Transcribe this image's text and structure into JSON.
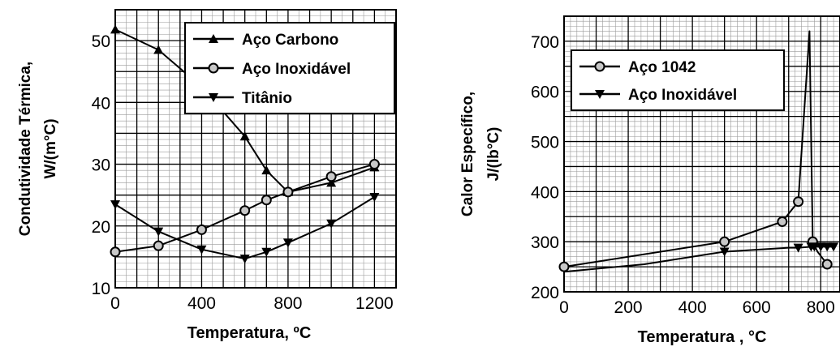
{
  "chart_data": [
    {
      "type": "line",
      "ylabel_line1": "Condutividade Térmica,",
      "ylabel_line2": "W/(m°C)",
      "xlabel": "Temperatura, ºC",
      "xlim": [
        0,
        1300
      ],
      "ylim": [
        10,
        55
      ],
      "xticks": [
        0,
        400,
        800,
        1200
      ],
      "yticks": [
        10,
        20,
        30,
        40,
        50
      ],
      "grid": true,
      "legend": "top-right",
      "series": [
        {
          "name": "Aço Carbono",
          "marker": "triangle-up",
          "x": [
            0,
            200,
            400,
            600,
            700,
            800,
            1000,
            1200
          ],
          "y": [
            51.8,
            48.5,
            42.5,
            34.5,
            29.0,
            25.5,
            27.0,
            29.5
          ]
        },
        {
          "name": "Aço Inoxidável",
          "marker": "circle",
          "x": [
            0,
            200,
            400,
            600,
            700,
            800,
            1000,
            1200
          ],
          "y": [
            15.8,
            16.8,
            19.4,
            22.5,
            24.2,
            25.5,
            28.0,
            30.0
          ]
        },
        {
          "name": "Titânio",
          "marker": "triangle-down",
          "x": [
            0,
            200,
            400,
            600,
            700,
            800,
            1000,
            1200
          ],
          "y": [
            23.5,
            19.1,
            16.2,
            14.7,
            15.8,
            17.3,
            20.4,
            24.7
          ]
        }
      ]
    },
    {
      "type": "line",
      "ylabel_line1": "Calor Específico,",
      "ylabel_line2": "J/(lb°C)",
      "xlabel": "Temperatura , °C",
      "xlim": [
        0,
        860
      ],
      "ylim": [
        200,
        750
      ],
      "xticks": [
        0,
        200,
        400,
        600,
        800
      ],
      "yticks": [
        200,
        300,
        400,
        500,
        600,
        700
      ],
      "grid": true,
      "legend": "top-left",
      "series": [
        {
          "name": "Aço  1042",
          "marker": "circle",
          "x": [
            0,
            500,
            680,
            730,
            765,
            775,
            790,
            820
          ],
          "y": [
            250,
            300,
            340,
            380,
            720,
            300,
            280,
            255
          ]
        },
        {
          "name": "Aço Inoxidável",
          "marker": "triangle-down",
          "x": [
            0,
            250,
            500,
            700,
            730,
            770,
            780,
            800,
            820,
            840
          ],
          "y": [
            240,
            255,
            280,
            288,
            288,
            290,
            290,
            290,
            290,
            290
          ]
        }
      ]
    }
  ]
}
